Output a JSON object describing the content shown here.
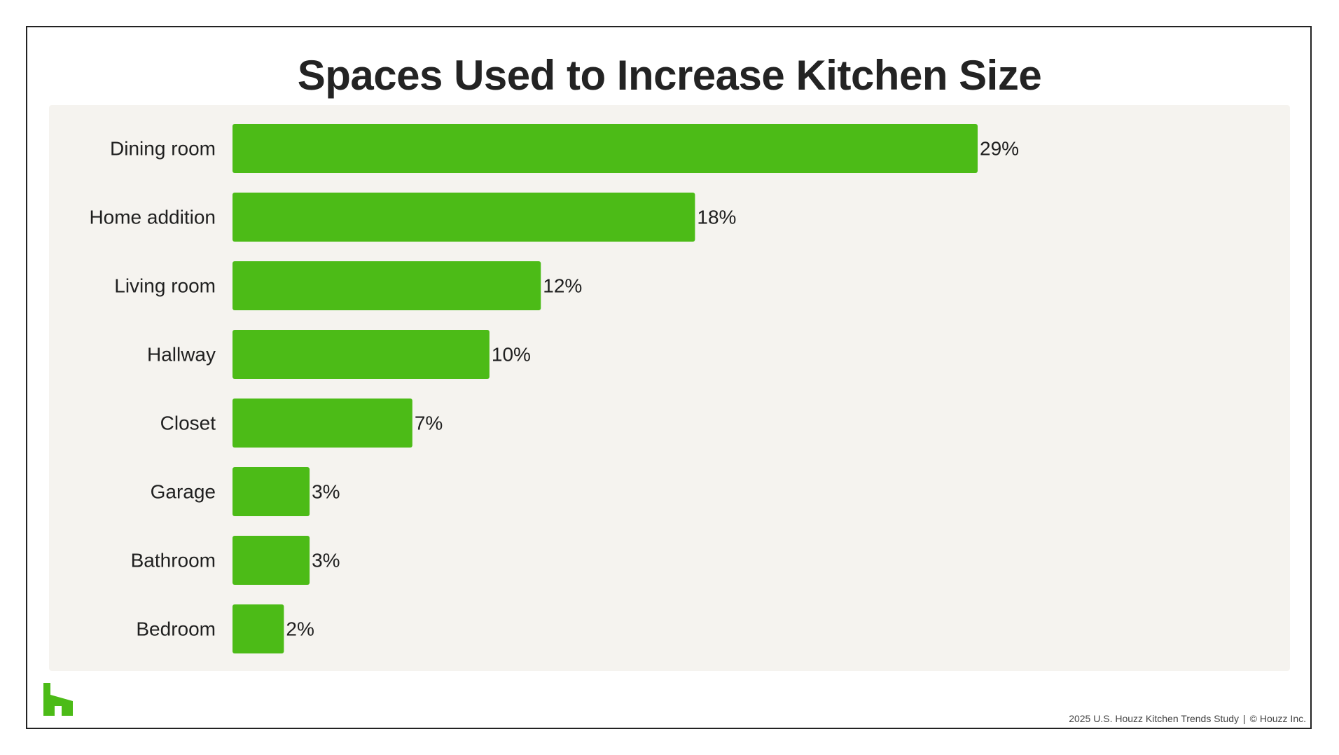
{
  "colors": {
    "bar": "#4cbb17",
    "panel": "#f5f3ef",
    "text": "#1f1f1f",
    "brand": "#4cbb17"
  },
  "logo": {
    "icon": "houzz-logo-icon"
  },
  "footer": {
    "study": "2025 U.S. Houzz Kitchen Trends Study",
    "separator": "|",
    "copyright": "© Houzz Inc."
  },
  "chart_data": {
    "type": "bar",
    "orientation": "horizontal",
    "title": "Spaces Used to Increase Kitchen Size",
    "categories": [
      "Dining room",
      "Home addition",
      "Living room",
      "Hallway",
      "Closet",
      "Garage",
      "Bathroom",
      "Bedroom"
    ],
    "values": [
      29,
      18,
      12,
      10,
      7,
      3,
      3,
      2
    ],
    "value_labels": [
      "29%",
      "18%",
      "12%",
      "10%",
      "7%",
      "3%",
      "3%",
      "2%"
    ],
    "unit": "%",
    "xlim": [
      0,
      29
    ],
    "grid": false,
    "legend": "none"
  }
}
